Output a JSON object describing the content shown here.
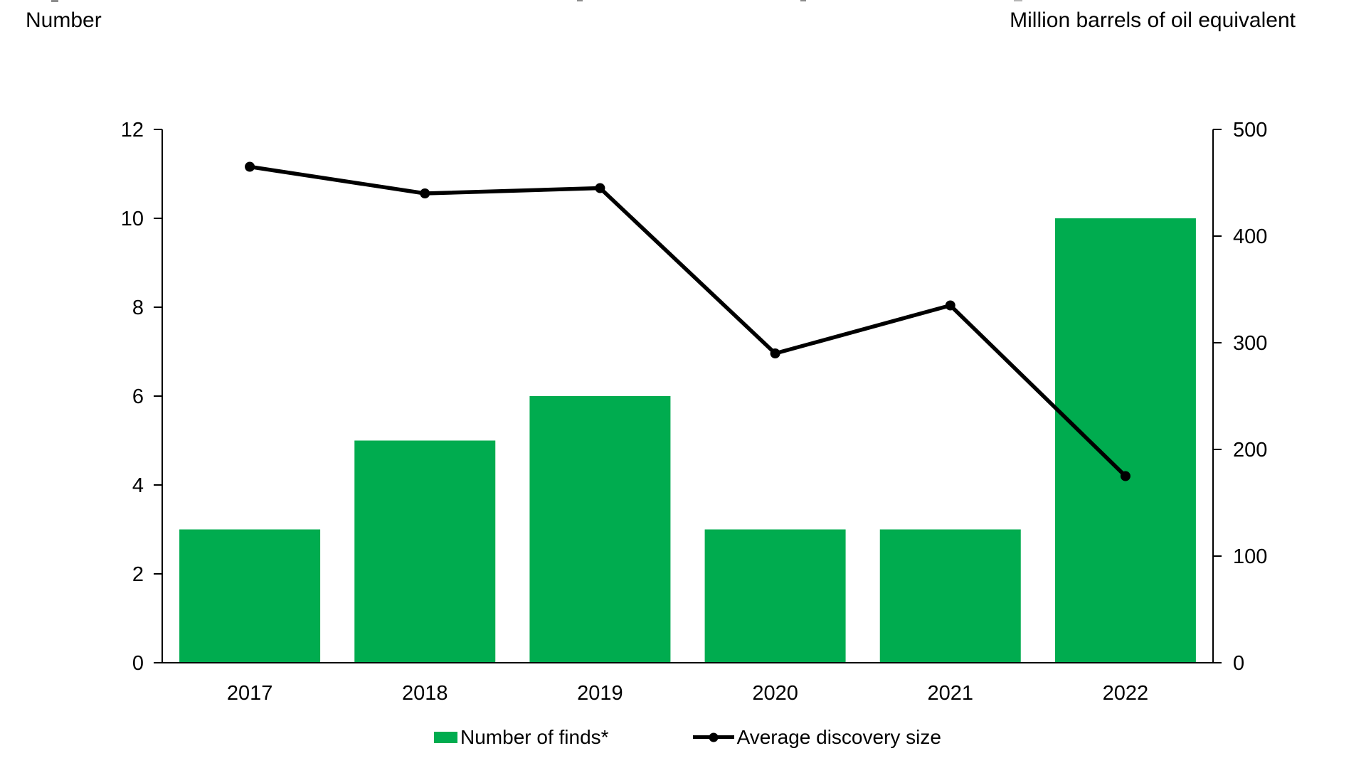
{
  "header": {
    "left_axis_unit": "Number",
    "right_axis_unit": "Million barrels of oil equivalent"
  },
  "legend": {
    "items": [
      {
        "label": "Number of finds*",
        "swatch": "bar-swatch",
        "color": "#00AC4F"
      },
      {
        "label": "Average discovery size",
        "swatch": "line-marker-swatch",
        "color": "#000000"
      }
    ],
    "position": "bottom-center"
  },
  "colors": {
    "bar_green": "#00AC4F",
    "line_black": "#000000",
    "axis_black": "#000000",
    "text_black": "#000000",
    "background": "#ffffff"
  },
  "chart_data": {
    "type": "combo-bar-line",
    "categories": [
      "2017",
      "2018",
      "2019",
      "2020",
      "2021",
      "2022"
    ],
    "series": [
      {
        "name": "Number of finds*",
        "type": "bar",
        "axis": "left",
        "color": "#00AC4F",
        "values": [
          3,
          5,
          6,
          3,
          3,
          10
        ]
      },
      {
        "name": "Average discovery size",
        "type": "line",
        "axis": "right",
        "color": "#000000",
        "values": [
          465,
          440,
          445,
          290,
          335,
          175
        ]
      }
    ],
    "left_axis": {
      "label": "Number",
      "min": 0,
      "max": 12,
      "tick_step": 2,
      "ticks": [
        0,
        2,
        4,
        6,
        8,
        10,
        12
      ]
    },
    "right_axis": {
      "label": "Million barrels of oil equivalent",
      "min": 0,
      "max": 500,
      "tick_step": 100,
      "ticks": [
        0,
        100,
        200,
        300,
        400,
        500
      ]
    },
    "grid": false,
    "legend_position": "bottom"
  }
}
